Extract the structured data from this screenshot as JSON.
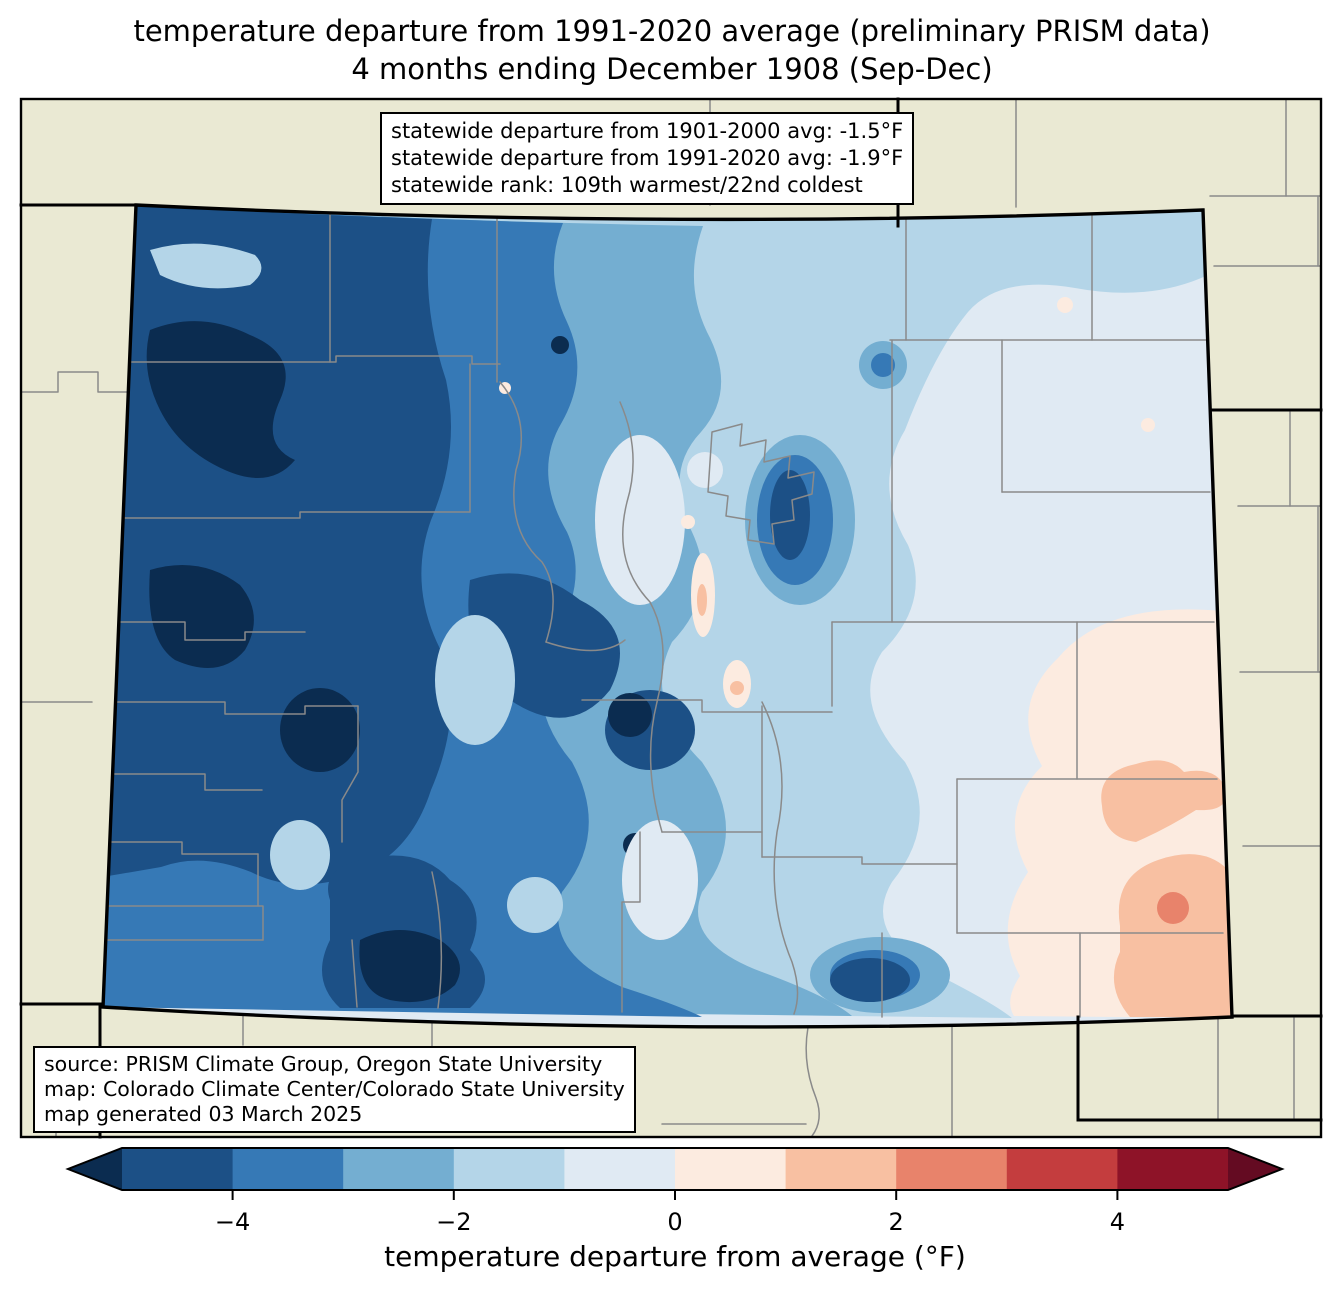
{
  "title": {
    "line1": "temperature departure from 1991-2020 average (preliminary PRISM data)",
    "line2": "4 months ending December 1908 (Sep-Dec)"
  },
  "stats_box": {
    "line1": "statewide departure from 1901-2000 avg: -1.5°F",
    "line2": "statewide departure from 1991-2020 avg: -1.9°F",
    "line3": "statewide rank: 109th warmest/22nd coldest"
  },
  "credits_box": {
    "line1": "source: PRISM Climate Group, Oregon State University",
    "line2": "map: Colorado Climate Center/Colorado State University",
    "line3": "map generated 03 March 2025"
  },
  "colorbar": {
    "label": "temperature departure from average (°F)",
    "min": -5,
    "max": 5,
    "segment_colors": [
      "#1c5086",
      "#3679b6",
      "#74aed1",
      "#b4d5e8",
      "#e0eaf3",
      "#fcebe0",
      "#f8c0a2",
      "#e8836b",
      "#c43d3e",
      "#8e1328"
    ],
    "under_color": "#0b2c50",
    "over_color": "#640b22",
    "ticks": [
      {
        "v": -4,
        "label": "−4"
      },
      {
        "v": -2,
        "label": "−2"
      },
      {
        "v": 0,
        "label": "0"
      },
      {
        "v": 2,
        "label": "2"
      },
      {
        "v": 4,
        "label": "4"
      }
    ]
  },
  "map": {
    "region": "Colorado",
    "palette": {
      "below_m5": "#0b2c50",
      "m5_m4": "#1c5086",
      "m4_m3": "#3679b6",
      "m3_m2": "#74aed1",
      "m2_m1": "#b4d5e8",
      "m1_0": "#e0eaf3",
      "0_p1": "#fcebe0",
      "p1_p2": "#f8c0a2",
      "p2_p3": "#e8836b",
      "p3_p4": "#c43d3e",
      "p4_p5": "#8e1328",
      "above_p5": "#640b22"
    },
    "colors": {
      "background": "#eae9d3",
      "county_line": "#8a8a8a",
      "state_border": "#000000"
    }
  },
  "chart_data": {
    "type": "filled-contour-map",
    "region": "Colorado",
    "variable": "temperature departure from average (°F)",
    "period": "4 months ending December 1908 (Sep-Dec)",
    "bin_edges": [
      -5,
      -4,
      -3,
      -2,
      -1,
      0,
      1,
      2,
      3,
      4,
      5
    ],
    "bin_colors": [
      "#1c5086",
      "#3679b6",
      "#74aed1",
      "#b4d5e8",
      "#e0eaf3",
      "#fcebe0",
      "#f8c0a2",
      "#e8836b",
      "#c43d3e",
      "#8e1328"
    ],
    "statewide_departure_from_1901_2000_avg_F": -1.5,
    "statewide_departure_from_1991_2020_avg_F": -1.9,
    "statewide_rank": "109th warmest/22nd coldest"
  }
}
